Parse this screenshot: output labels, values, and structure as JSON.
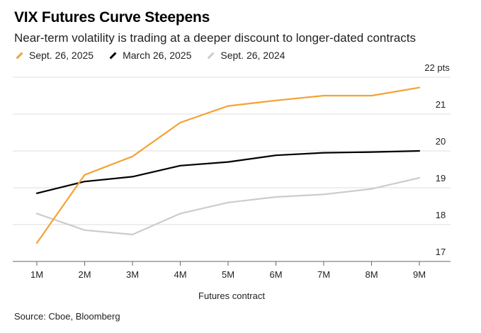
{
  "header": {
    "title": "VIX Futures Curve Steepens",
    "subtitle": "Near-term volatility is trading at a deeper discount to longer-dated contracts"
  },
  "legend": [
    {
      "label": "Sept. 26, 2025",
      "color": "#f5a234"
    },
    {
      "label": "March 26, 2025",
      "color": "#000000"
    },
    {
      "label": "Sept. 26, 2024",
      "color": "#cccccc"
    }
  ],
  "footer": {
    "source": "Source: Cboe, Bloomberg"
  },
  "chart_data": {
    "type": "line",
    "title": "VIX Futures Curve Steepens",
    "subtitle": "Near-term volatility is trading at a deeper discount to longer-dated contracts",
    "xlabel": "Futures contract",
    "ylabel": "",
    "categories": [
      "1M",
      "2M",
      "3M",
      "4M",
      "5M",
      "6M",
      "7M",
      "8M",
      "9M"
    ],
    "y_ticks": [
      17,
      18,
      19,
      20,
      21,
      22
    ],
    "y_tick_labels": [
      "17",
      "18",
      "19",
      "20",
      "21",
      "22 pts"
    ],
    "ylim": [
      16.8,
      22.3
    ],
    "y_axis_side": "right",
    "grid": true,
    "legend_position": "top-left",
    "series": [
      {
        "name": "Sept. 26, 2025",
        "color": "#f5a234",
        "values": [
          17.5,
          19.35,
          19.85,
          20.77,
          21.22,
          21.37,
          21.5,
          21.5,
          21.72
        ]
      },
      {
        "name": "March 26, 2025",
        "color": "#000000",
        "values": [
          18.85,
          19.17,
          19.3,
          19.6,
          19.7,
          19.88,
          19.95,
          19.97,
          20.0
        ]
      },
      {
        "name": "Sept. 26, 2024",
        "color": "#cccccc",
        "values": [
          18.3,
          17.85,
          17.73,
          18.3,
          18.6,
          18.75,
          18.82,
          18.97,
          19.27
        ]
      }
    ]
  }
}
